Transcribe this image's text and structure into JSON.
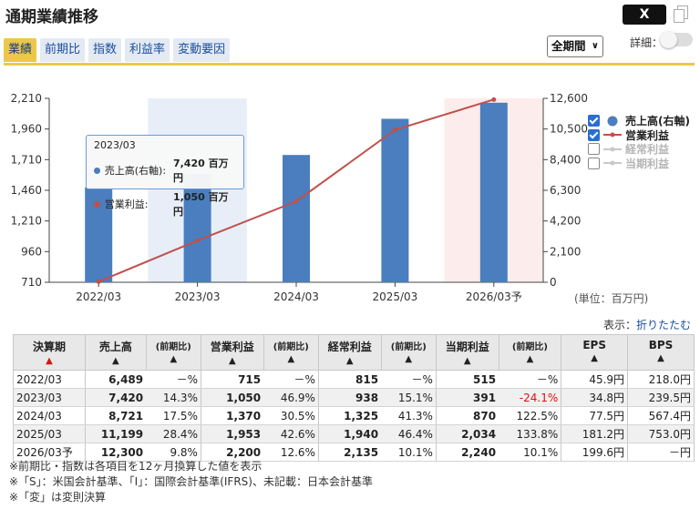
{
  "header": {
    "title": "通期業績推移",
    "x_button": "X",
    "copy_icon": "copy-icon"
  },
  "tabs": [
    {
      "label": "業績",
      "active": true
    },
    {
      "label": "前期比",
      "active": false
    },
    {
      "label": "指数",
      "active": false
    },
    {
      "label": "利益率",
      "active": false
    },
    {
      "label": "変動要因",
      "active": false
    }
  ],
  "controls": {
    "period_selected": "全期間",
    "detail_label": "詳細：",
    "detail_toggle_on": false
  },
  "colors": {
    "accent": "#ebc84a",
    "bar": "#4a7ebf",
    "line": "#c0504d",
    "link": "#1a4e9b",
    "negative": "#dd1111"
  },
  "chart_data": {
    "type": "bar",
    "categories": [
      "2022/03",
      "2023/03",
      "2024/03",
      "2025/03",
      "2026/03予"
    ],
    "series": [
      {
        "name": "売上高(右軸)",
        "type": "bar",
        "axis": "right",
        "values": [
          6489,
          7420,
          8721,
          11199,
          12300
        ]
      },
      {
        "name": "営業利益",
        "type": "line",
        "axis": "left",
        "values": [
          715,
          1050,
          1370,
          1953,
          2200
        ]
      }
    ],
    "left_axis": {
      "ylim": [
        710,
        2210
      ],
      "ticks": [
        "710",
        "960",
        "1,210",
        "1,460",
        "1,710",
        "1,960",
        "2,210"
      ]
    },
    "right_axis": {
      "ylim": [
        0,
        12600
      ],
      "ticks": [
        "0",
        "2,100",
        "4,200",
        "6,300",
        "8,400",
        "10,500",
        "12,600"
      ]
    },
    "highlighted_category": "2023/03",
    "forecast_category": "2026/03予",
    "legend": [
      {
        "label": "売上高(右軸)",
        "checked": true
      },
      {
        "label": "営業利益",
        "checked": true
      },
      {
        "label": "経常利益",
        "checked": false
      },
      {
        "label": "当期利益",
        "checked": false
      }
    ],
    "legend_position": "right",
    "grid": false,
    "tooltip": {
      "title": "2023/03",
      "rows": [
        {
          "label": "売上高(右軸):",
          "value": "7,420 百万円"
        },
        {
          "label": "営業利益:",
          "value": "1,050 百万円"
        }
      ]
    },
    "unit_label": "(単位：百万円)"
  },
  "display": {
    "label": "表示：",
    "link": "折りたたむ"
  },
  "table": {
    "headers": [
      "決算期",
      "売上高",
      "(前期比)",
      "営業利益",
      "(前期比)",
      "経常利益",
      "(前期比)",
      "当期利益",
      "(前期比)",
      "EPS",
      "BPS"
    ],
    "rows": [
      [
        "2022/03",
        "6,489",
        "－%",
        "715",
        "－%",
        "815",
        "－%",
        "515",
        "－%",
        "45.9円",
        "218.0円"
      ],
      [
        "2023/03",
        "7,420",
        "14.3%",
        "1,050",
        "46.9%",
        "938",
        "15.1%",
        "391",
        "-24.1%",
        "34.8円",
        "239.5円"
      ],
      [
        "2024/03",
        "8,721",
        "17.5%",
        "1,370",
        "30.5%",
        "1,325",
        "41.3%",
        "870",
        "122.5%",
        "77.5円",
        "567.4円"
      ],
      [
        "2025/03",
        "11,199",
        "28.4%",
        "1,953",
        "42.6%",
        "1,940",
        "46.4%",
        "2,034",
        "133.8%",
        "181.2円",
        "753.0円"
      ],
      [
        "2026/03予",
        "12,300",
        "9.8%",
        "2,200",
        "12.6%",
        "2,135",
        "10.1%",
        "2,240",
        "10.1%",
        "199.6円",
        "－円"
      ]
    ]
  },
  "notes": [
    "※前期比・指数は各項目を12ヶ月換算した値を表示",
    "※「S」：米国会計基準、「I」：国際会計基準(IFRS)、未記載：日本会計基準",
    "※「変」は変則決算"
  ]
}
